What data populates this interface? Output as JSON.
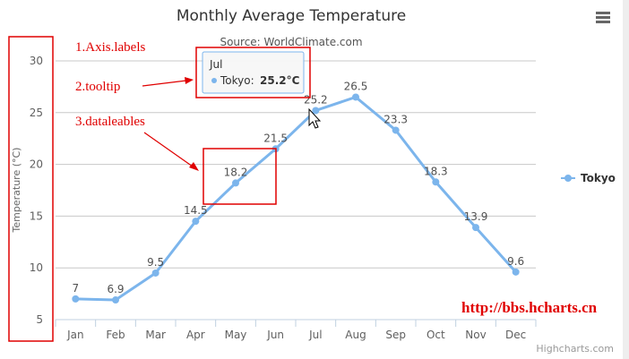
{
  "chart_data": {
    "type": "line",
    "title": "Monthly Average Temperature",
    "subtitle": "Source: WorldClimate.com",
    "xlabel": "",
    "ylabel": "Temperature (°C)",
    "categories": [
      "Jan",
      "Feb",
      "Mar",
      "Apr",
      "May",
      "Jun",
      "Jul",
      "Aug",
      "Sep",
      "Oct",
      "Nov",
      "Dec"
    ],
    "series": [
      {
        "name": "Tokyo",
        "values": [
          7.0,
          6.9,
          9.5,
          14.5,
          18.2,
          21.5,
          25.2,
          26.5,
          23.3,
          18.3,
          13.9,
          9.6
        ],
        "color": "#7cb5ec"
      }
    ],
    "data_labels": [
      "7",
      "6.9",
      "9.5",
      "14.5",
      "18.2",
      "21.5",
      "25.2",
      "26.5",
      "23.3",
      "18.3",
      "13.9",
      "9.6"
    ],
    "ylim": [
      5,
      30
    ],
    "yticks": [
      "5",
      "10",
      "15",
      "20",
      "25",
      "30"
    ],
    "grid": true,
    "legend_placement": "right",
    "tooltip": {
      "header": "Jul",
      "series": "Tokyo:",
      "value": "25.2°C"
    },
    "credits": "Highcharts.com"
  },
  "annotations": {
    "axis_labels": "1.Axis.labels",
    "tooltip": "2.tooltip",
    "datalabels": "3.dataleables",
    "watermark": "http://bbs.hcharts.cn"
  },
  "menu_icon": "hamburger-menu-icon"
}
